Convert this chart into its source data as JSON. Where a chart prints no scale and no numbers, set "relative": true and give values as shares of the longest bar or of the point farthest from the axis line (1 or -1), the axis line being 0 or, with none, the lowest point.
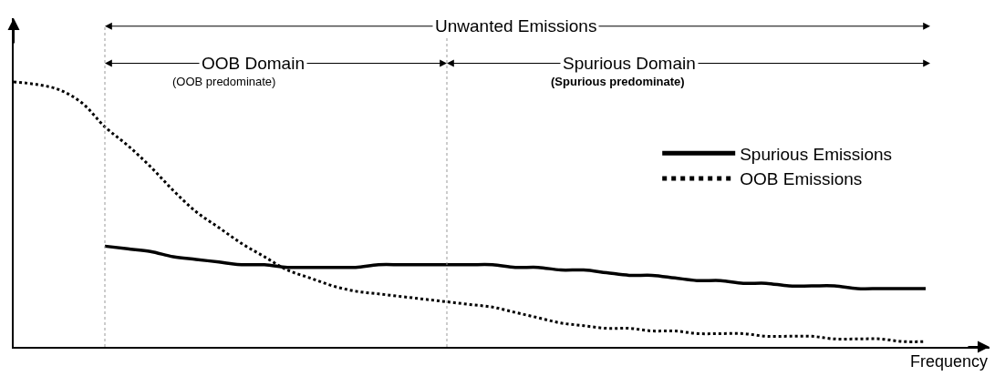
{
  "chart_data": {
    "type": "line",
    "relative": true,
    "xlabel": "Frequency",
    "categories": [
      null,
      null,
      null,
      null,
      null,
      null,
      null,
      null,
      null,
      null,
      null,
      null,
      null,
      null,
      null,
      null,
      null,
      null,
      null,
      null,
      null,
      null,
      null,
      null,
      null,
      null,
      null,
      null,
      null,
      null,
      null,
      null,
      null,
      null,
      null,
      null,
      null,
      null,
      null,
      null,
      null
    ],
    "series": [
      {
        "name": "Spurious Emissions",
        "color": "#000000",
        "line_style": "solid",
        "values": [
          null,
          null,
          null,
          null,
          0.38,
          0.37,
          0.36,
          0.34,
          0.33,
          0.32,
          0.31,
          0.31,
          0.3,
          0.3,
          0.3,
          0.3,
          0.31,
          0.31,
          0.31,
          0.31,
          0.31,
          0.31,
          0.3,
          0.3,
          0.29,
          0.29,
          0.28,
          0.27,
          0.27,
          0.26,
          0.25,
          0.25,
          0.24,
          0.24,
          0.23,
          0.23,
          0.23,
          0.22,
          0.22,
          0.22,
          0.22
        ]
      },
      {
        "name": "OOB Emissions",
        "color": "#000000",
        "line_style": "dotted",
        "values": [
          1.0,
          0.99,
          0.97,
          0.92,
          0.83,
          0.76,
          0.68,
          0.59,
          0.51,
          0.45,
          0.39,
          0.34,
          0.29,
          0.26,
          0.23,
          0.21,
          0.2,
          0.19,
          0.18,
          0.17,
          0.16,
          0.15,
          0.13,
          0.11,
          0.09,
          0.08,
          0.07,
          0.07,
          0.06,
          0.06,
          0.05,
          0.05,
          0.05,
          0.04,
          0.04,
          0.04,
          0.03,
          0.03,
          0.03,
          0.02,
          0.02
        ]
      }
    ],
    "annotations": [
      "Unwanted Emissions",
      "OOB Domain",
      "(OOB predominate)",
      "Spurious Domain",
      "(Spurious predominate)"
    ],
    "legend": "right",
    "marker": "none"
  }
}
